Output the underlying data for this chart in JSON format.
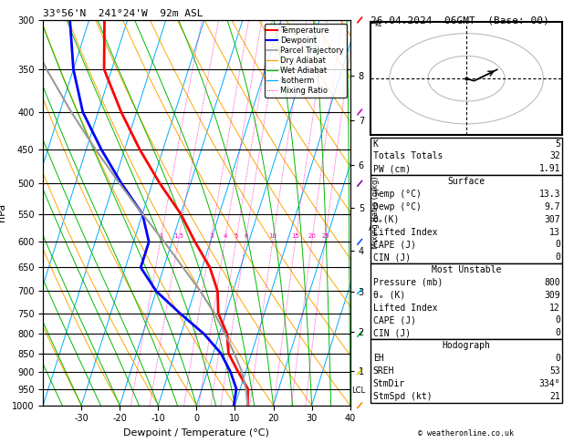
{
  "title_left": "33°56'N  241°24'W  92m ASL",
  "title_right": "26.04.2024  06GMT  (Base: 00)",
  "xlabel": "Dewpoint / Temperature (°C)",
  "ylabel_left": "hPa",
  "background": "#ffffff",
  "isotherm_color": "#00aaff",
  "dry_adiabat_color": "#ffa500",
  "wet_adiabat_color": "#00bb00",
  "mixing_ratio_color": "#ff00bb",
  "temperature_color": "#ff0000",
  "dewpoint_color": "#0000ff",
  "parcel_color": "#999999",
  "pressure_levels": [
    300,
    350,
    400,
    450,
    500,
    550,
    600,
    650,
    700,
    750,
    800,
    850,
    900,
    950,
    1000
  ],
  "temp_xlim": [
    -40,
    40
  ],
  "temp_ticks": [
    -30,
    -20,
    -10,
    0,
    10,
    20,
    30,
    40
  ],
  "km_levels": [
    1,
    2,
    3,
    4,
    5,
    6,
    7,
    8
  ],
  "km_pressures": [
    898,
    795,
    701,
    616,
    540,
    472,
    411,
    357
  ],
  "mixing_ratio_values": [
    1,
    1.5,
    3,
    4,
    5,
    6,
    10,
    15,
    20,
    25
  ],
  "mixing_ratio_label_pressure": 595,
  "temp_profile_T": [
    13.3,
    12.0,
    8.0,
    4.0,
    2.0,
    -2.0,
    -4.0,
    -8.0,
    -14.0,
    -20.0,
    -28.0,
    -36.0,
    -44.0,
    -52.0,
    -56.0
  ],
  "temp_profile_P": [
    1000,
    950,
    900,
    850,
    800,
    750,
    700,
    650,
    600,
    550,
    500,
    450,
    400,
    350,
    300
  ],
  "dewp_profile_T": [
    9.7,
    9.0,
    6.0,
    2.0,
    -4.0,
    -12.0,
    -20.0,
    -26.0,
    -26.0,
    -30.0,
    -38.0,
    -46.0,
    -54.0,
    -60.0,
    -65.0
  ],
  "dewp_profile_P": [
    1000,
    950,
    900,
    850,
    800,
    750,
    700,
    650,
    600,
    550,
    500,
    450,
    400,
    350,
    300
  ],
  "parcel_T": [
    13.3,
    11.5,
    9.0,
    5.5,
    1.5,
    -3.0,
    -8.5,
    -15.0,
    -22.0,
    -30.0,
    -38.5,
    -47.5,
    -57.0,
    -67.0,
    -77.0
  ],
  "parcel_P": [
    1000,
    950,
    900,
    850,
    800,
    750,
    700,
    650,
    600,
    550,
    500,
    450,
    400,
    350,
    300
  ],
  "lcl_pressure": 955,
  "skew_factor": 32.0,
  "hodograph_u": [
    0,
    2,
    8
  ],
  "hodograph_v": [
    0,
    -1,
    4
  ],
  "wind_barb_pressures": [
    300,
    400,
    500,
    600,
    700,
    800,
    900,
    1000
  ],
  "wind_barb_colors": [
    "#ff0000",
    "#cc00cc",
    "#8800aa",
    "#0055ff",
    "#00bbff",
    "#00cc44",
    "#cccc00",
    "#ff8800"
  ],
  "stats": {
    "K": 5,
    "Totals_Totals": 32,
    "PW_cm": "1.91",
    "Surface_Temp": "13.3",
    "Surface_Dewp": "9.7",
    "Surface_theta_e": 307,
    "Surface_LI": 13,
    "Surface_CAPE": 0,
    "Surface_CIN": 0,
    "MU_Pressure": 800,
    "MU_theta_e": 309,
    "MU_LI": 12,
    "MU_CAPE": 0,
    "MU_CIN": 0,
    "EH": 0,
    "SREH": 53,
    "StmDir": "334°",
    "StmSpd": 21
  }
}
